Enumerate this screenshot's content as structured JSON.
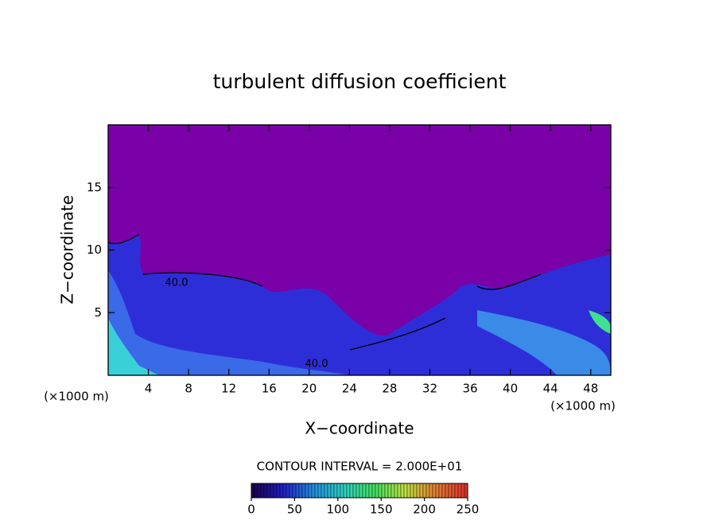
{
  "chart_data": {
    "type": "contour",
    "title": "turbulent diffusion coefficient",
    "xlabel": "X−coordinate",
    "ylabel": "Z−coordinate",
    "x_unit": "(×1000 m)",
    "y_unit": "(×1000 m)",
    "xlim": [
      0,
      50
    ],
    "ylim": [
      0,
      20
    ],
    "xticks": [
      4,
      8,
      12,
      16,
      20,
      24,
      28,
      32,
      36,
      40,
      44,
      48
    ],
    "yticks": [
      5,
      10,
      15
    ],
    "contour_labels": [
      "40.0",
      "40.0"
    ],
    "contour_interval_label": "CONTOUR INTERVAL = 2.000E+01",
    "colorbar": {
      "lim": [
        0,
        250
      ],
      "ticks": [
        0,
        50,
        100,
        150,
        200,
        250
      ],
      "colors": [
        "#1a0050",
        "#2020c8",
        "#2090e0",
        "#30d0c0",
        "#40e060",
        "#c0e040",
        "#e08030",
        "#e03030"
      ]
    }
  }
}
